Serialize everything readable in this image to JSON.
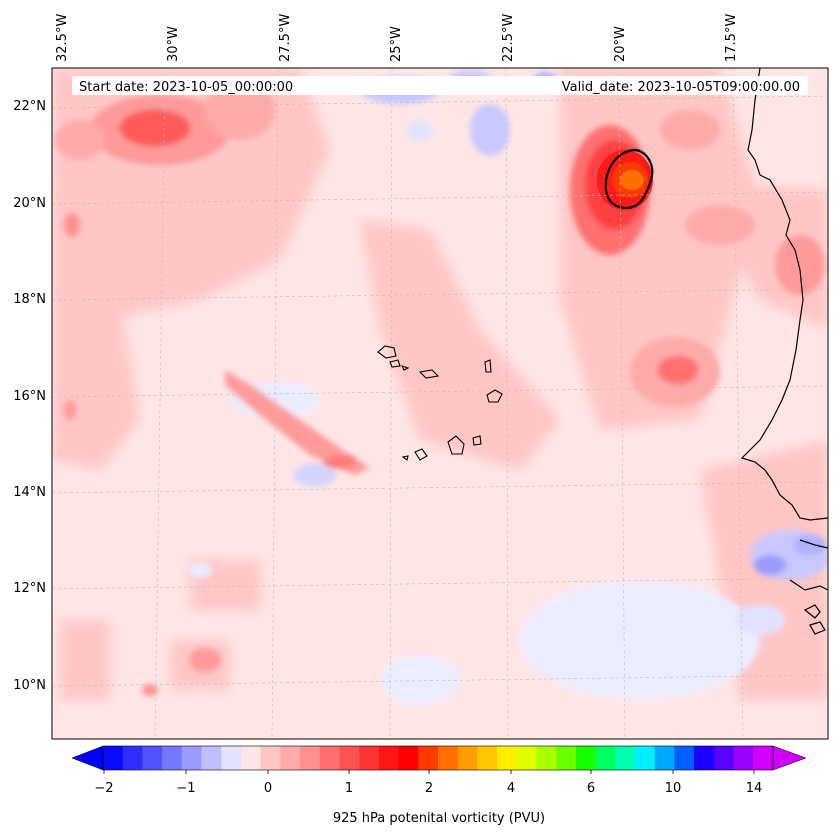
{
  "map": {
    "start_label": "Start date: 2023-10-05_00:00:00",
    "valid_label": "Valid_date: 2023-10-05T09:00:00.00",
    "lon_labels": [
      "32.5°W",
      "30°W",
      "27.5°W",
      "25°W",
      "22.5°W",
      "20°W",
      "17.5°W"
    ],
    "lat_labels": [
      "22°N",
      "20°N",
      "18°N",
      "16°N",
      "14°N",
      "12°N",
      "10°N"
    ]
  },
  "colorbar": {
    "title": "925 hPa potenital vorticity (PVU)",
    "tick_labels": [
      "−2",
      "−1",
      "0",
      "1",
      "2",
      "4",
      "6",
      "10",
      "14"
    ],
    "colors": [
      "#0a0aff",
      "#2e2eff",
      "#5252ff",
      "#7676ff",
      "#9a9aff",
      "#bebeff",
      "#e2e2ff",
      "#ffe6e6",
      "#ffc6c6",
      "#ffaaaa",
      "#ff8e8e",
      "#ff7070",
      "#ff5252",
      "#ff3434",
      "#ff1616",
      "#ff0000",
      "#ff3a00",
      "#ff7000",
      "#ff9c00",
      "#ffc800",
      "#ffee00",
      "#e0ff00",
      "#a8ff00",
      "#6cff00",
      "#18ff00",
      "#00ff60",
      "#00ffb0",
      "#00f0ff",
      "#00a8ff",
      "#0060ff",
      "#1a00ff",
      "#5a00ff",
      "#9a00ff",
      "#d200ff"
    ]
  }
}
